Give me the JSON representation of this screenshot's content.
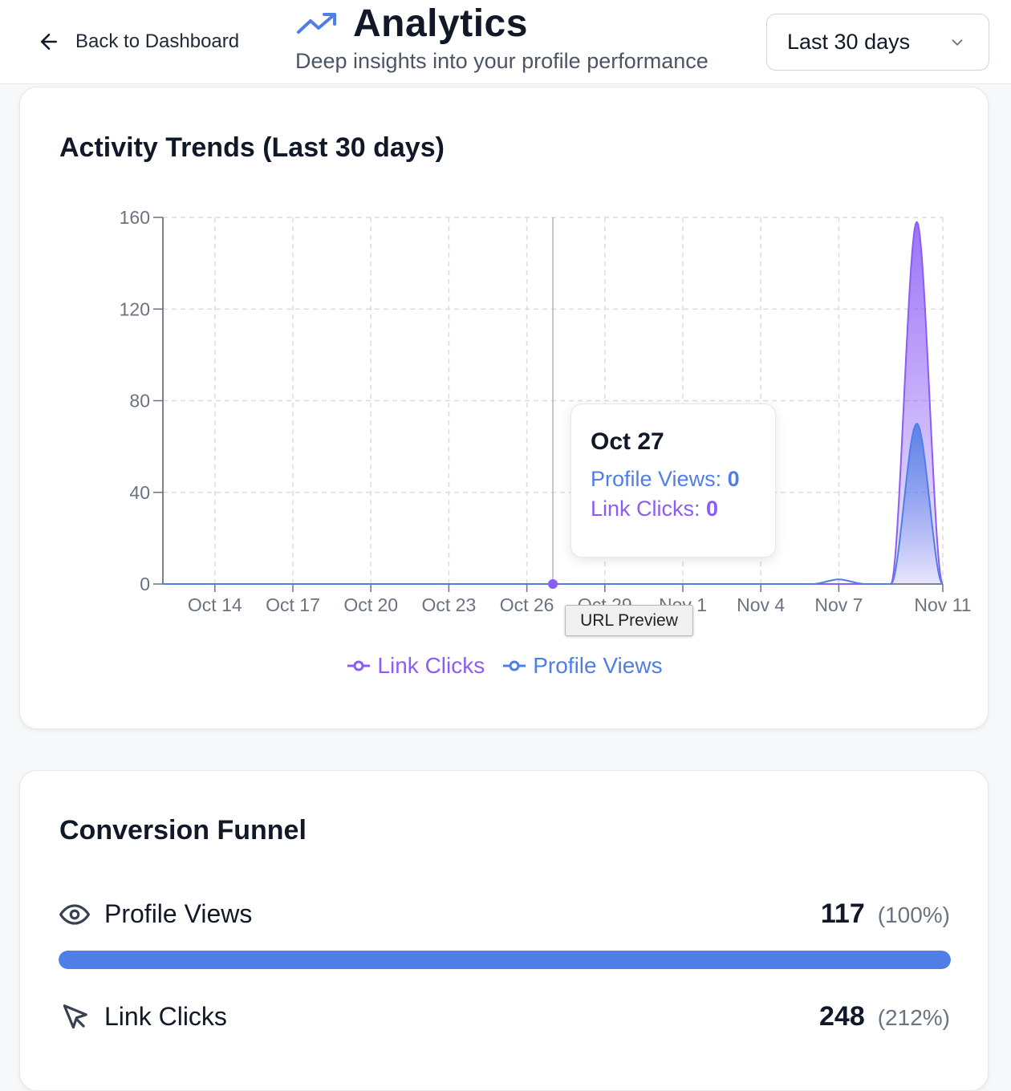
{
  "header": {
    "back_label": "Back to Dashboard",
    "title": "Analytics",
    "subtitle": "Deep insights into your profile performance",
    "range_selected": "Last 30 days",
    "accent": "#4f7fe6"
  },
  "trends": {
    "title": "Activity Trends (Last 30 days)",
    "tooltip": {
      "date": "Oct 27",
      "views_label": "Profile Views:",
      "views_value": "0",
      "clicks_label": "Link Clicks:",
      "clicks_value": "0"
    },
    "url_preview": "URL Preview",
    "legend": {
      "clicks": "Link Clicks",
      "views": "Profile Views"
    }
  },
  "chart_data": {
    "type": "area",
    "title": "Activity Trends (Last 30 days)",
    "x_tick_labels": [
      "Oct 14",
      "Oct 17",
      "Oct 20",
      "Oct 23",
      "Oct 26",
      "Oct 29",
      "Nov 1",
      "Nov 4",
      "Nov 7",
      "Nov 11"
    ],
    "x": [
      "Oct 12",
      "Oct 13",
      "Oct 14",
      "Oct 15",
      "Oct 16",
      "Oct 17",
      "Oct 18",
      "Oct 19",
      "Oct 20",
      "Oct 21",
      "Oct 22",
      "Oct 23",
      "Oct 24",
      "Oct 25",
      "Oct 26",
      "Oct 27",
      "Oct 28",
      "Oct 29",
      "Oct 30",
      "Oct 31",
      "Nov 1",
      "Nov 2",
      "Nov 3",
      "Nov 4",
      "Nov 5",
      "Nov 6",
      "Nov 7",
      "Nov 8",
      "Nov 9",
      "Nov 10",
      "Nov 11"
    ],
    "series": [
      {
        "name": "Link Clicks",
        "color": "#8b5cf6",
        "values": [
          0,
          0,
          0,
          0,
          0,
          0,
          0,
          0,
          0,
          0,
          0,
          0,
          0,
          0,
          0,
          0,
          0,
          0,
          0,
          0,
          0,
          0,
          0,
          0,
          0,
          0,
          0,
          0,
          0,
          158,
          0
        ]
      },
      {
        "name": "Profile Views",
        "color": "#4f7fe6",
        "values": [
          0,
          0,
          0,
          0,
          0,
          0,
          0,
          0,
          0,
          0,
          0,
          0,
          0,
          0,
          0,
          0,
          0,
          0,
          0,
          0,
          0,
          0,
          0,
          0,
          0,
          0,
          2,
          0,
          0,
          70,
          0
        ]
      }
    ],
    "ylim": [
      0,
      160
    ],
    "y_ticks": [
      0,
      40,
      80,
      120,
      160
    ],
    "grid": true,
    "legend_position": "bottom",
    "hover_index": 15
  },
  "funnel": {
    "title": "Conversion Funnel",
    "rows": [
      {
        "label": "Profile Views",
        "count": "117",
        "pct": "(100%)",
        "fill": 1.0,
        "icon": "eye-icon"
      },
      {
        "label": "Link Clicks",
        "count": "248",
        "pct": "(212%)",
        "icon": "cursor-icon"
      }
    ]
  }
}
